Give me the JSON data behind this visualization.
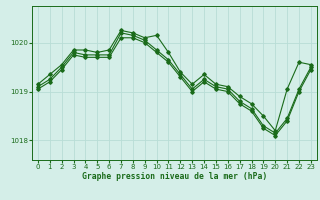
{
  "title": "Graphe pression niveau de la mer (hPa)",
  "background_color": "#d4eee8",
  "line_color": "#1a6b1a",
  "grid_color": "#b8ddd6",
  "xlim": [
    -0.5,
    23.5
  ],
  "ylim": [
    1017.6,
    1020.75
  ],
  "yticks": [
    1018,
    1019,
    1020
  ],
  "xticks": [
    0,
    1,
    2,
    3,
    4,
    5,
    6,
    7,
    8,
    9,
    10,
    11,
    12,
    13,
    14,
    15,
    16,
    17,
    18,
    19,
    20,
    21,
    22,
    23
  ],
  "s1": [
    1019.15,
    1019.35,
    1019.55,
    1019.85,
    1019.85,
    1019.8,
    1019.85,
    1020.25,
    1020.2,
    1020.1,
    1020.15,
    1019.8,
    1019.4,
    1019.15,
    1019.35,
    1019.15,
    1019.1,
    1018.9,
    1018.75,
    1018.5,
    1018.2,
    1019.05,
    1019.6,
    1019.55
  ],
  "s2": [
    1019.1,
    1019.25,
    1019.5,
    1019.8,
    1019.75,
    1019.75,
    1019.75,
    1020.2,
    1020.15,
    1020.05,
    1019.85,
    1019.65,
    1019.35,
    1019.05,
    1019.25,
    1019.1,
    1019.05,
    1018.8,
    1018.65,
    1018.3,
    1018.15,
    1018.45,
    1019.05,
    1019.5
  ],
  "s3": [
    1019.05,
    1019.2,
    1019.45,
    1019.75,
    1019.7,
    1019.7,
    1019.7,
    1020.1,
    1020.1,
    1020.0,
    1019.8,
    1019.6,
    1019.3,
    1019.0,
    1019.2,
    1019.05,
    1019.0,
    1018.75,
    1018.6,
    1018.25,
    1018.1,
    1018.4,
    1019.0,
    1019.45
  ],
  "title_fontsize": 5.8,
  "tick_fontsize": 5.0
}
